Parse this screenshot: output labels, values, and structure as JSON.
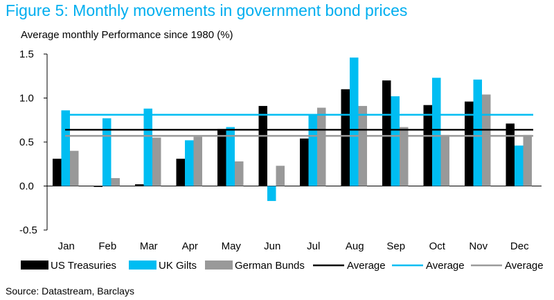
{
  "title": "Figure 5: Monthly movements in government bond prices",
  "subtitle": "Average monthly Performance since 1980  (%)",
  "source": "Source: Datastream, Barclays",
  "colors": {
    "us": "#000000",
    "uk": "#00bdf2",
    "de": "#999999",
    "title": "#00aeef"
  },
  "chart_data": {
    "type": "bar",
    "categories": [
      "Jan",
      "Feb",
      "Mar",
      "Apr",
      "May",
      "Jun",
      "Jul",
      "Aug",
      "Sep",
      "Oct",
      "Nov",
      "Dec"
    ],
    "series": [
      {
        "name": "US Treasuries",
        "values": [
          0.31,
          -0.01,
          0.02,
          0.31,
          0.65,
          0.91,
          0.54,
          1.1,
          1.2,
          0.92,
          0.96,
          0.71
        ]
      },
      {
        "name": "UK Gilts",
        "values": [
          0.86,
          0.77,
          0.88,
          0.52,
          0.67,
          -0.17,
          0.81,
          1.46,
          1.02,
          1.23,
          1.21,
          0.46
        ]
      },
      {
        "name": "German Bunds",
        "values": [
          0.4,
          0.09,
          0.55,
          0.56,
          0.28,
          0.23,
          0.89,
          0.91,
          0.67,
          0.58,
          1.04,
          0.58
        ]
      }
    ],
    "averages": [
      {
        "name": "Average",
        "value": 0.64,
        "series": "US Treasuries"
      },
      {
        "name": "Average",
        "value": 0.81,
        "series": "UK Gilts"
      },
      {
        "name": "Average",
        "value": 0.57,
        "series": "German Bunds"
      }
    ],
    "yticks": [
      "1.5",
      "1.0",
      "0.5",
      "0.0",
      "-0.5"
    ],
    "ytick_values": [
      1.5,
      1.0,
      0.5,
      0.0,
      -0.5
    ],
    "ylim": [
      -0.5,
      1.5
    ],
    "grid": false,
    "legend": "bottom",
    "xlabel": "",
    "ylabel": ""
  }
}
